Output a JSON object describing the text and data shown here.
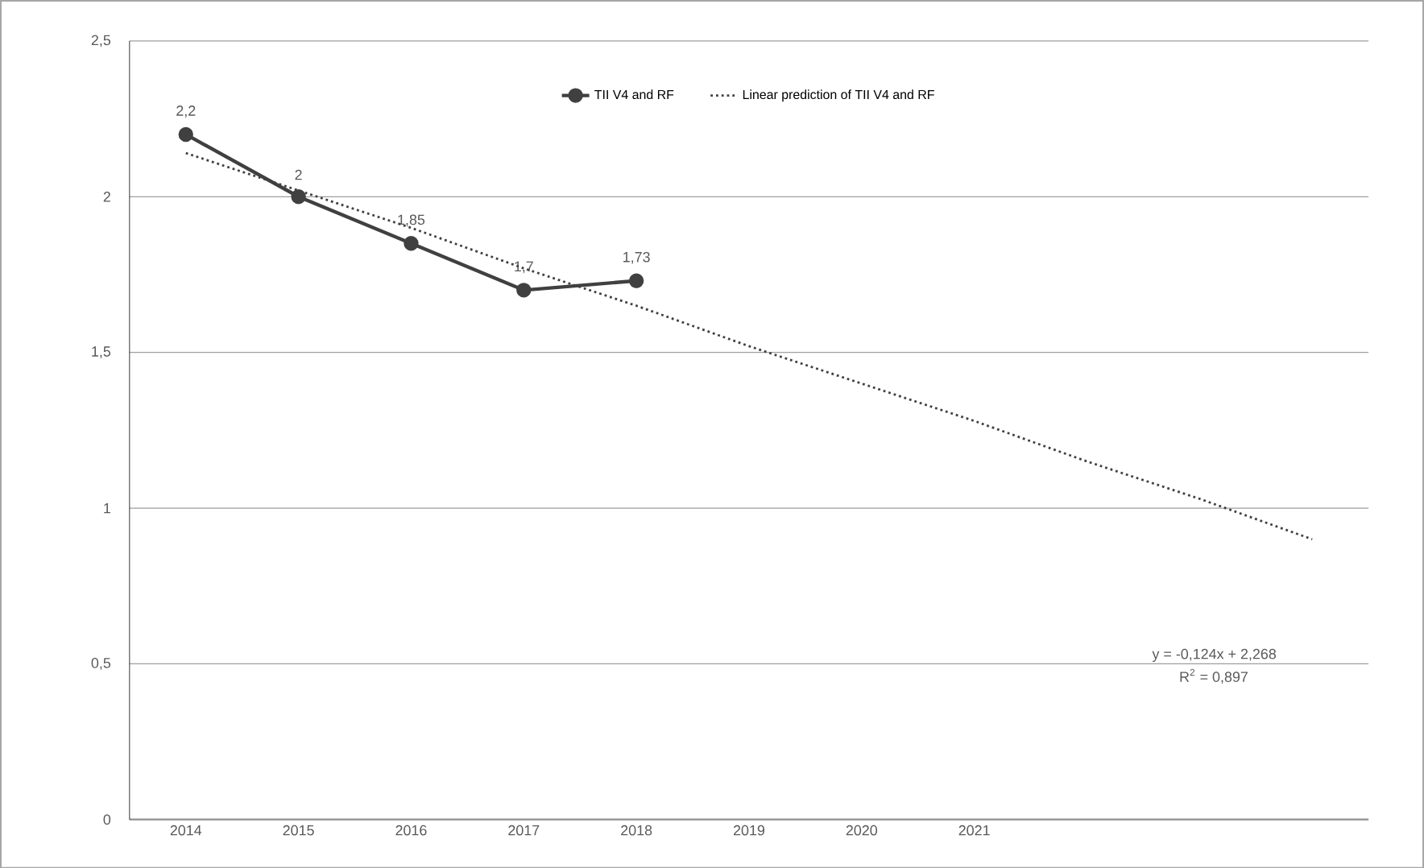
{
  "chart_data": {
    "type": "line",
    "categories": [
      "2014",
      "2015",
      "2016",
      "2017",
      "2018",
      "2019",
      "2020",
      "2021",
      null,
      null,
      null
    ],
    "series": [
      {
        "name": "TII V4 and RF",
        "color": "#404040",
        "values": [
          2.2,
          2,
          1.85,
          1.7,
          1.73,
          null,
          null,
          null,
          null,
          null,
          null
        ],
        "value_labels": [
          "2,2",
          "2",
          "1,85",
          "1,7",
          "1,73",
          null,
          null,
          null,
          null,
          null,
          null
        ],
        "marker": "circle",
        "line_style": "solid"
      },
      {
        "name": "Linear prediction of TII V4 and RF",
        "color": "#404040",
        "values": [
          2.14,
          2.02,
          1.9,
          1.77,
          1.65,
          1.52,
          1.4,
          1.28,
          1.15,
          1.03,
          0.9
        ],
        "marker": "none",
        "line_style": "dotted"
      }
    ],
    "ylim": [
      0,
      2.5
    ],
    "yticks": [
      0,
      {
        "value": 0.5,
        "label": "0,5"
      },
      1,
      {
        "value": 1.5,
        "label": "1,5"
      },
      2,
      {
        "value": 2.5,
        "label": "2,5"
      }
    ],
    "grid": "y",
    "legend": "top",
    "annotations": [
      "y = -0,124x + 2,268",
      "R$^{2}$ = 0,897"
    ]
  }
}
